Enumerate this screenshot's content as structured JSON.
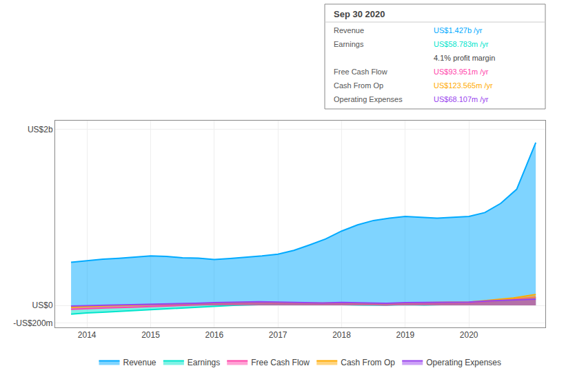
{
  "chart_data": {
    "type": "area",
    "xlim": [
      2013.5,
      2021.2
    ],
    "xticks": [
      2014,
      2015,
      2016,
      2017,
      2018,
      2019,
      2020
    ],
    "ylim": [
      -250,
      2100
    ],
    "yticks": [
      {
        "value": -200,
        "label": "-US$200m"
      },
      {
        "value": 0,
        "label": "US$0"
      },
      {
        "value": 2000,
        "label": "US$2b"
      }
    ],
    "grid": true,
    "legend": "bottom",
    "series": [
      {
        "name": "Revenue",
        "color": "#00aaff",
        "x": [
          2013.75,
          2014.0,
          2014.25,
          2014.5,
          2014.75,
          2015.0,
          2015.25,
          2015.5,
          2015.75,
          2016.0,
          2016.25,
          2016.5,
          2016.75,
          2017.0,
          2017.25,
          2017.5,
          2017.75,
          2018.0,
          2018.25,
          2018.5,
          2018.75,
          2019.0,
          2019.25,
          2019.5,
          2019.75,
          2020.0,
          2020.25,
          2020.5,
          2020.75,
          2021.05
        ],
        "values": [
          490,
          510,
          525,
          535,
          548,
          562,
          557,
          542,
          537,
          522,
          533,
          547,
          562,
          583,
          625,
          688,
          755,
          845,
          915,
          965,
          992,
          1012,
          1002,
          992,
          1002,
          1012,
          1055,
          1160,
          1320,
          1850
        ]
      },
      {
        "name": "Earnings",
        "color": "#00e5cc",
        "x": [
          2013.75,
          2014.0,
          2014.3,
          2014.7,
          2015.0,
          2015.3,
          2015.7,
          2016.0,
          2016.3,
          2016.7,
          2017.0,
          2017.3,
          2017.7,
          2018.0,
          2018.3,
          2018.7,
          2019.0,
          2019.3,
          2019.7,
          2020.0,
          2020.3,
          2020.7,
          2021.05
        ],
        "values": [
          -100,
          -85,
          -75,
          -60,
          -45,
          -35,
          -20,
          -10,
          0,
          8,
          8,
          12,
          10,
          8,
          5,
          2,
          8,
          5,
          10,
          18,
          35,
          55,
          90
        ]
      },
      {
        "name": "Free Cash Flow",
        "color": "#ff44aa",
        "x": [
          2013.75,
          2014.0,
          2014.3,
          2014.7,
          2015.0,
          2015.3,
          2015.7,
          2016.0,
          2016.3,
          2016.7,
          2017.0,
          2017.3,
          2017.7,
          2018.0,
          2018.3,
          2018.7,
          2019.0,
          2019.3,
          2019.7,
          2020.0,
          2020.3,
          2020.7,
          2021.05
        ],
        "values": [
          -45,
          -35,
          -28,
          -20,
          -12,
          -5,
          5,
          15,
          25,
          30,
          22,
          18,
          14,
          18,
          10,
          5,
          14,
          18,
          22,
          22,
          42,
          70,
          95
        ]
      },
      {
        "name": "Cash From Op",
        "color": "#ffaa00",
        "x": [
          2013.75,
          2014.0,
          2014.3,
          2014.7,
          2015.0,
          2015.3,
          2015.7,
          2016.0,
          2016.3,
          2016.7,
          2017.0,
          2017.3,
          2017.7,
          2018.0,
          2018.3,
          2018.7,
          2019.0,
          2019.3,
          2019.7,
          2020.0,
          2020.3,
          2020.7,
          2021.05
        ],
        "values": [
          -20,
          -12,
          -5,
          2,
          8,
          15,
          22,
          28,
          35,
          38,
          32,
          28,
          26,
          30,
          22,
          20,
          28,
          32,
          35,
          38,
          58,
          85,
          125
        ]
      },
      {
        "name": "Operating Expenses",
        "color": "#9944ee",
        "x": [
          2013.75,
          2014.0,
          2014.3,
          2014.7,
          2015.0,
          2015.3,
          2015.7,
          2016.0,
          2016.3,
          2016.7,
          2017.0,
          2017.3,
          2017.7,
          2018.0,
          2018.3,
          2018.7,
          2019.0,
          2019.3,
          2019.7,
          2020.0,
          2020.3,
          2020.7,
          2021.05
        ],
        "values": [
          -8,
          -2,
          3,
          8,
          12,
          18,
          25,
          32,
          38,
          42,
          37,
          32,
          28,
          33,
          28,
          25,
          32,
          35,
          38,
          38,
          52,
          65,
          72
        ]
      }
    ],
    "info_box": {
      "title": "Sep 30 2020",
      "rows": [
        {
          "label": "Revenue",
          "value": "US$1.427b /yr",
          "color": "#00aaff"
        },
        {
          "label": "Earnings",
          "value": "US$58.783m /yr",
          "color": "#00e5cc"
        },
        {
          "value": "4.1% profit margin"
        },
        {
          "label": "Free Cash Flow",
          "value": "US$93.951m /yr",
          "color": "#ff44aa"
        },
        {
          "label": "Cash From Op",
          "value": "US$123.565m /yr",
          "color": "#ffaa00"
        },
        {
          "label": "Operating Expenses",
          "value": "US$68.107m /yr",
          "color": "#9944ee"
        }
      ]
    }
  }
}
